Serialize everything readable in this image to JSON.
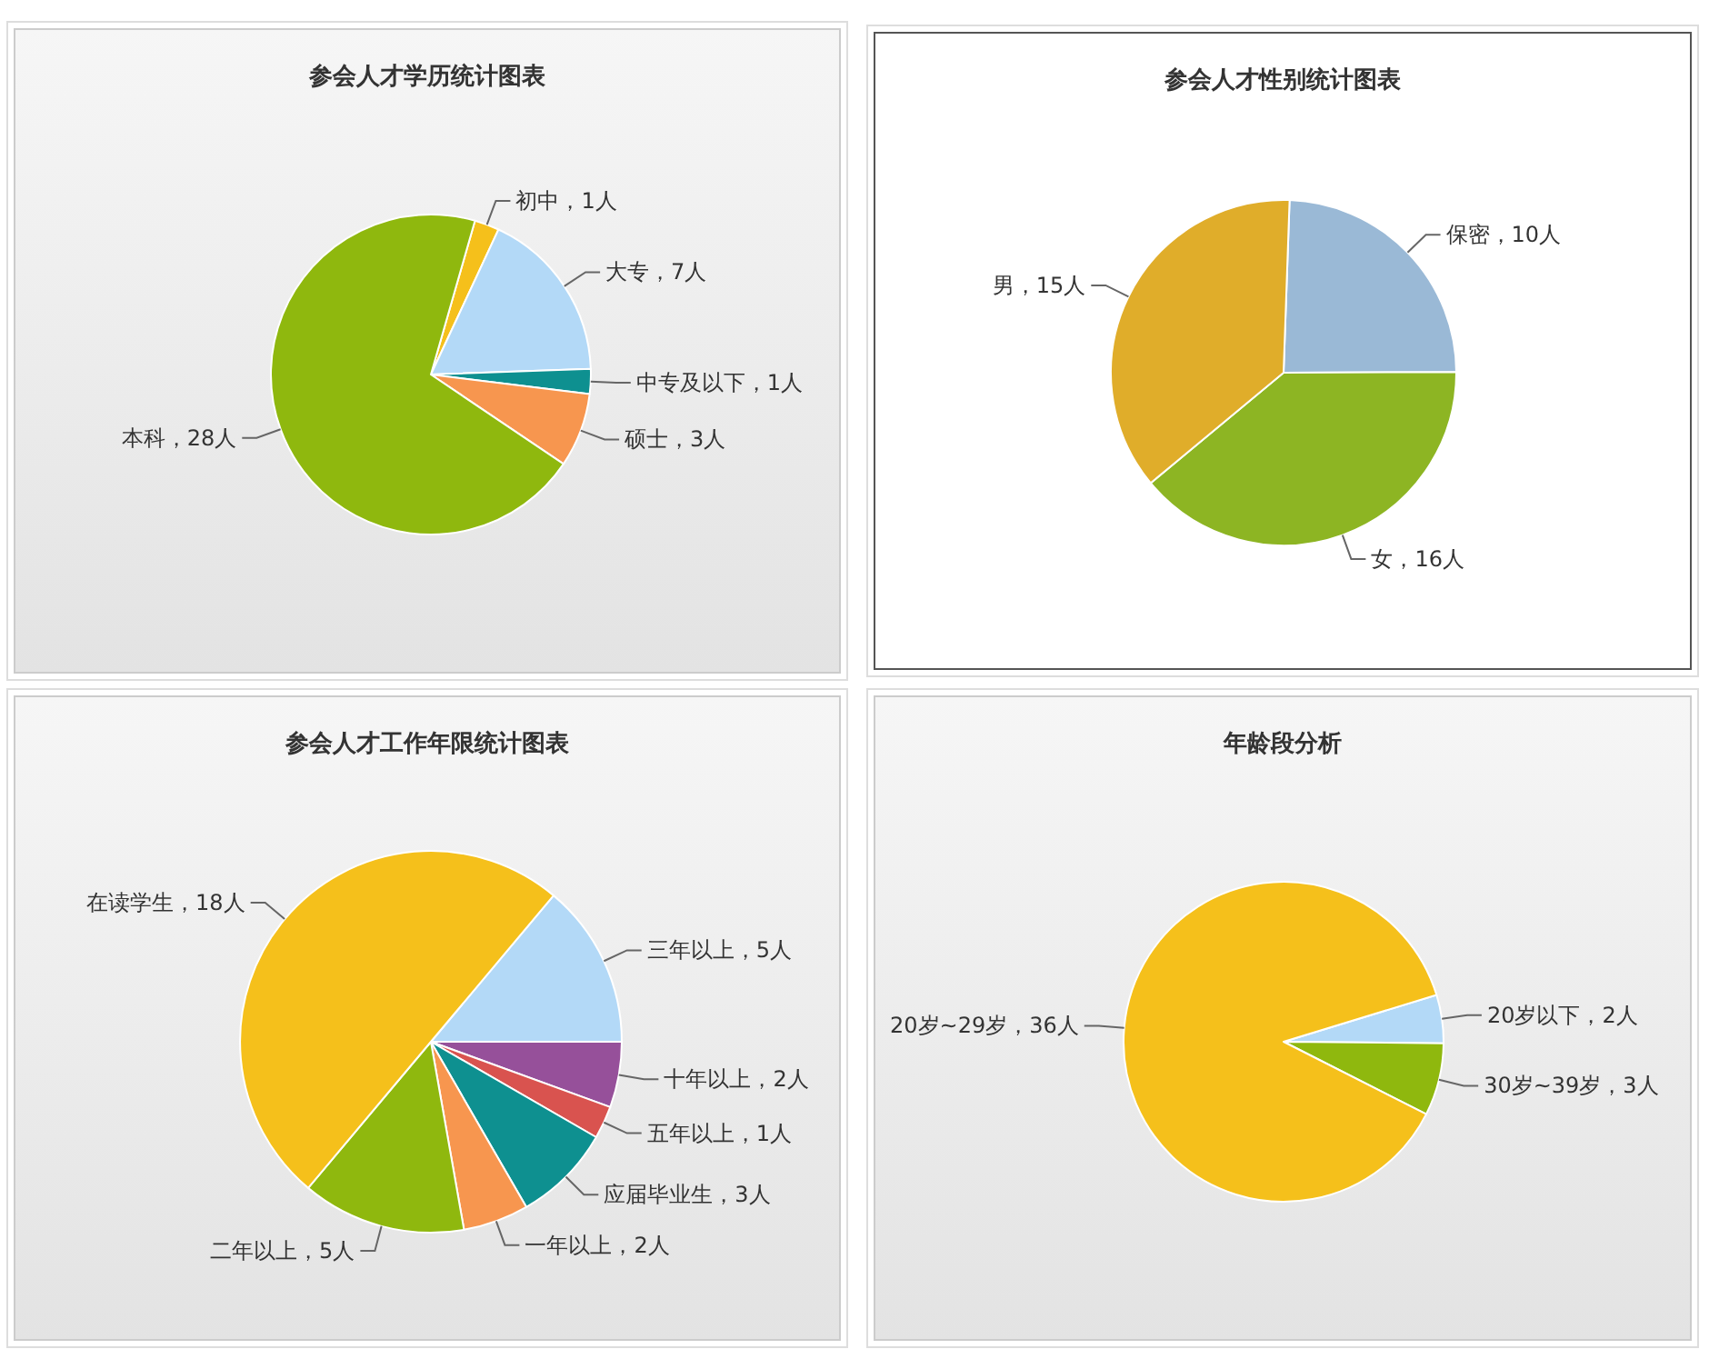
{
  "chart_data": [
    {
      "type": "pie",
      "title": "参会人才学历统计图表",
      "categories": [
        "初中",
        "大专",
        "中专及以下",
        "硕士",
        "本科"
      ],
      "values": [
        1,
        7,
        1,
        3,
        28
      ],
      "value_labels": [
        "1人",
        "7人",
        "1人",
        "3人",
        "28人"
      ],
      "colors": [
        "#f5c01b",
        "#b3d9f7",
        "#0e9090",
        "#f7964f",
        "#8fb80e"
      ]
    },
    {
      "type": "pie",
      "title": "参会人才性别统计图表",
      "categories": [
        "保密",
        "女",
        "男"
      ],
      "values": [
        10,
        16,
        15
      ],
      "value_labels": [
        "10人",
        "16人",
        "15人"
      ],
      "colors": [
        "#9ab9d6",
        "#8db523",
        "#e0ad2a"
      ]
    },
    {
      "type": "pie",
      "title": "参会人才工作年限统计图表",
      "categories": [
        "三年以上",
        "十年以上",
        "五年以上",
        "应届毕业生",
        "一年以上",
        "二年以上",
        "在读学生"
      ],
      "values": [
        5,
        2,
        1,
        3,
        2,
        5,
        18
      ],
      "value_labels": [
        "5人",
        "2人",
        "1人",
        "3人",
        "2人",
        "5人",
        "18人"
      ],
      "colors": [
        "#b3d9f7",
        "#96509a",
        "#d9534f",
        "#0e9090",
        "#f7964f",
        "#8fb80e",
        "#f5c01b"
      ]
    },
    {
      "type": "pie",
      "title": "年龄段分析",
      "categories": [
        "20岁以下",
        "30岁~39岁",
        "20岁~29岁"
      ],
      "values": [
        2,
        3,
        36
      ],
      "value_labels": [
        "2人",
        "3人",
        "36人"
      ],
      "colors": [
        "#b3d9f7",
        "#8fb80e",
        "#f5c01b"
      ]
    }
  ]
}
